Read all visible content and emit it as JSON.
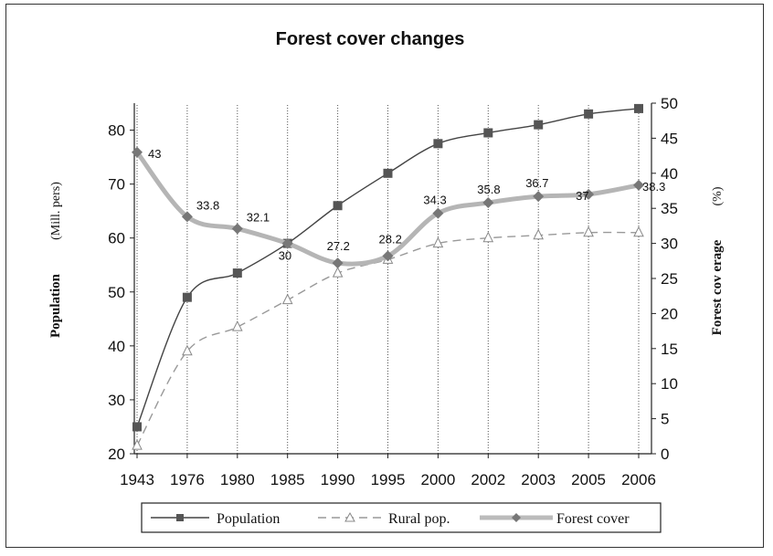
{
  "chart_data": {
    "type": "line",
    "title": "Forest cover changes",
    "categories": [
      "1943",
      "1976",
      "1980",
      "1985",
      "1990",
      "1995",
      "2000",
      "2002",
      "2003",
      "2005",
      "2006"
    ],
    "ylabel_left_main": "Population",
    "ylabel_left_unit": "(Mill. pers)",
    "ylabel_right_main": "Forest cov erage",
    "ylabel_right_unit": "(%)",
    "y_left_lim": [
      20,
      85
    ],
    "y_left_ticks": [
      "20",
      "30",
      "40",
      "50",
      "60",
      "70",
      "80"
    ],
    "y_right_lim": [
      0,
      50
    ],
    "y_right_ticks": [
      "0",
      "5",
      "10",
      "15",
      "20",
      "25",
      "30",
      "35",
      "40",
      "45",
      "50"
    ],
    "grid": "vertical dotted lines at each category",
    "legend_position": "bottom",
    "series": [
      {
        "name": "Population",
        "axis": "left",
        "color": "#444444",
        "marker": "square",
        "values": [
          25,
          49,
          53.5,
          59,
          66,
          72,
          77.5,
          79.5,
          81,
          83,
          84
        ]
      },
      {
        "name": "Rural pop.",
        "axis": "left",
        "color": "#999999",
        "marker": "triangle",
        "values": [
          21.5,
          39,
          43.5,
          48.5,
          53.5,
          56,
          59,
          60,
          60.5,
          61,
          61
        ]
      },
      {
        "name": "Forest cover",
        "axis": "right",
        "color": "#b5b5b5",
        "marker": "diamond",
        "values": [
          43,
          33.8,
          32.1,
          30,
          27.2,
          28.2,
          34.3,
          35.8,
          36.7,
          37,
          38.3
        ],
        "labels": [
          "43",
          "33.8",
          "32.1",
          "30",
          "27.2",
          "28.2",
          "34.3",
          "35.8",
          "36.7",
          "37",
          "38.3"
        ]
      }
    ]
  }
}
